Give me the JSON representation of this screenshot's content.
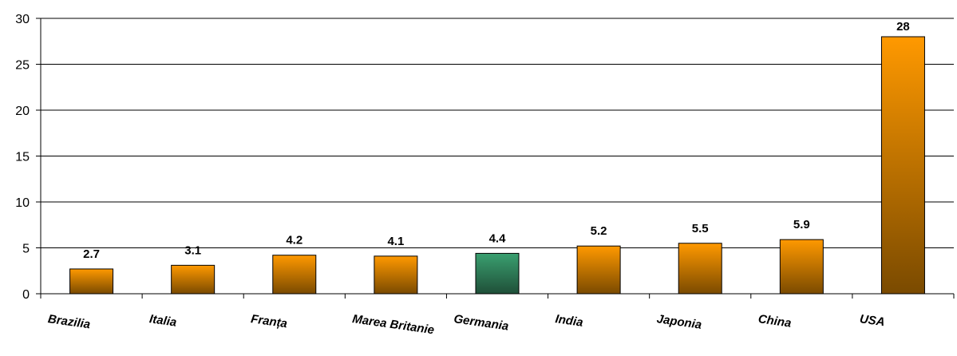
{
  "chart_data": {
    "type": "bar",
    "categories": [
      "Brazilia",
      "Italia",
      "Franța",
      "Marea Britanie",
      "Germania",
      "India",
      "Japonia",
      "China",
      "USA"
    ],
    "values": [
      2.7,
      3.1,
      4.2,
      4.1,
      4.4,
      5.2,
      5.5,
      5.9,
      28
    ],
    "value_labels": [
      "2.7",
      "3.1",
      "4.2",
      "4.1",
      "4.4",
      "5.2",
      "5.5",
      "5.9",
      "28"
    ],
    "y_ticks": [
      "0",
      "5",
      "10",
      "15",
      "20",
      "25",
      "30"
    ],
    "ylim": [
      0,
      30
    ],
    "grid": true,
    "legend": "none",
    "title": "",
    "xlabel": "",
    "ylabel": "",
    "highlight_index": 4
  },
  "colors": {
    "bar_top": "#ff9900",
    "bar_bottom": "#7a4a00",
    "highlight_top": "#3aa070",
    "highlight_bottom": "#1f4f38",
    "gridline": "#000000",
    "bar_stroke": "#000000"
  }
}
